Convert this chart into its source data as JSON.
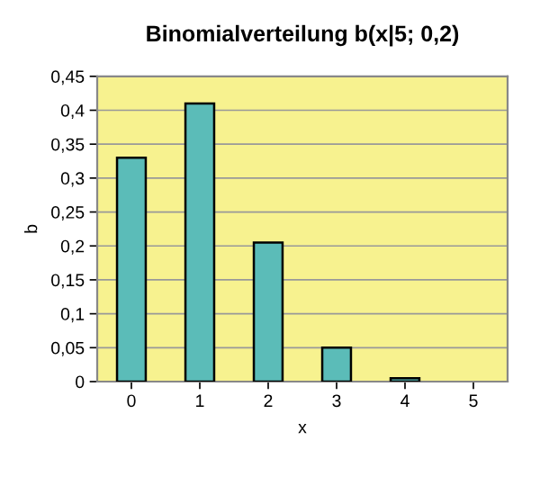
{
  "chart_data": {
    "type": "bar",
    "title": "Binomialverteilung b(x|5; 0,2)",
    "xlabel": "x",
    "ylabel": "b",
    "categories": [
      "0",
      "1",
      "2",
      "3",
      "4",
      "5"
    ],
    "values": [
      0.33,
      0.41,
      0.205,
      0.05,
      0.005,
      0
    ],
    "color": "#5bbcb8",
    "ylim": [
      0,
      0.45
    ],
    "yticks": [
      0,
      {
        "value": 0.05,
        "label": "0,05"
      },
      {
        "value": 0.1,
        "label": "0,1"
      },
      {
        "value": 0.15,
        "label": "0,15"
      },
      {
        "value": 0.2,
        "label": "0,2"
      },
      {
        "value": 0.25,
        "label": "0,25"
      },
      {
        "value": 0.3,
        "label": "0,3"
      },
      {
        "value": 0.35,
        "label": "0,35"
      },
      {
        "value": 0.4,
        "label": "0,4"
      },
      {
        "value": 0.45,
        "label": "0,45"
      }
    ],
    "grid": "y"
  }
}
